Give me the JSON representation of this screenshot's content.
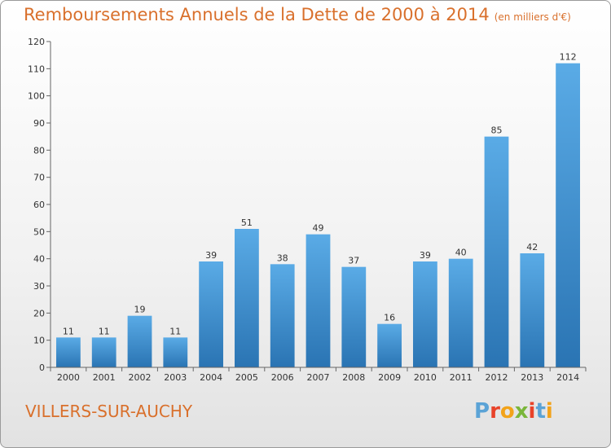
{
  "header": {
    "title": "Remboursements Annuels de la Dette de 2000 à 2014",
    "unit": "(en milliers d'€)"
  },
  "footer": {
    "city": "VILLERS-SUR-AUCHY",
    "logo_letters": [
      "P",
      "r",
      "o",
      "x",
      "i",
      "t",
      "i"
    ]
  },
  "colors": {
    "title": "#d9702c",
    "bar_top": "#5aabe6",
    "bar_bottom": "#2a74b3",
    "logo": [
      "#5ba3d6",
      "#e8432a",
      "#f2a31a",
      "#7ab63a",
      "#e8432a",
      "#5ba3d6",
      "#f2a31a"
    ]
  },
  "chart_data": {
    "type": "bar",
    "title": "Remboursements Annuels de la Dette de 2000 à 2014",
    "xlabel": "",
    "ylabel": "",
    "ylim": [
      0,
      120
    ],
    "yticks": [
      0,
      10,
      20,
      30,
      40,
      50,
      60,
      70,
      80,
      90,
      100,
      110,
      120
    ],
    "grid": false,
    "categories": [
      "2000",
      "2001",
      "2002",
      "2003",
      "2004",
      "2005",
      "2006",
      "2007",
      "2008",
      "2009",
      "2010",
      "2011",
      "2012",
      "2013",
      "2014"
    ],
    "values": [
      11,
      11,
      19,
      11,
      39,
      51,
      38,
      49,
      37,
      16,
      39,
      40,
      85,
      42,
      112
    ]
  }
}
